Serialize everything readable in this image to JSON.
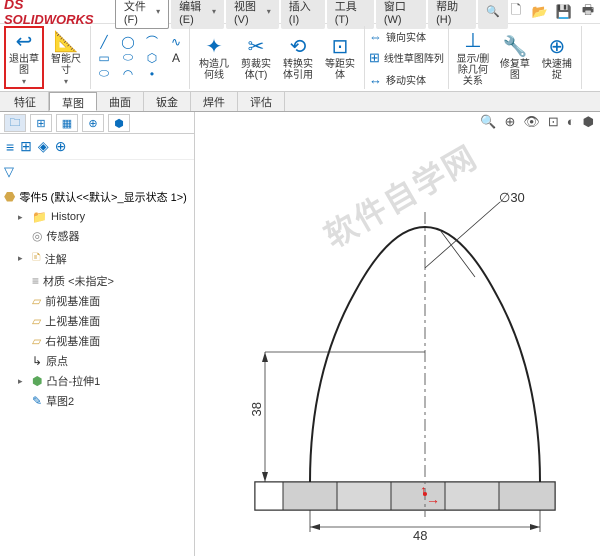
{
  "app": {
    "logo": "SOLIDWORKS",
    "logo_prefix": "DS"
  },
  "menu": [
    "文件(F)",
    "编辑(E)",
    "视图(V)",
    "插入(I)",
    "工具(T)",
    "窗口(W)",
    "帮助(H)"
  ],
  "ribbon": {
    "exit_sketch": "退出草图",
    "smart_dim": "智能尺寸",
    "convert": "构造几何线",
    "trim": "剪裁实体(T)",
    "convert_ent": "转换实体引用",
    "offset": "等距实体",
    "mirror": "镜向实体",
    "pattern": "线性草图阵列",
    "move": "移动实体",
    "display": "显示/删除几何关系",
    "repair": "修复草图",
    "quick": "快速捕捉"
  },
  "tabs": [
    "特征",
    "草图",
    "曲面",
    "钣金",
    "焊件",
    "评估"
  ],
  "tree": {
    "title": "零件5 (默认<<默认>_显示状态 1>)",
    "items": [
      {
        "icon": "folder",
        "label": "History",
        "expand": "▸"
      },
      {
        "icon": "sensor",
        "label": "传感器",
        "expand": ""
      },
      {
        "icon": "note",
        "label": "注解",
        "expand": "▸"
      },
      {
        "icon": "mat",
        "label": "材质 <未指定>",
        "expand": ""
      },
      {
        "icon": "plane",
        "label": "前视基准面",
        "expand": ""
      },
      {
        "icon": "plane",
        "label": "上视基准面",
        "expand": ""
      },
      {
        "icon": "plane",
        "label": "右视基准面",
        "expand": ""
      },
      {
        "icon": "origin",
        "label": "原点",
        "expand": ""
      },
      {
        "icon": "feat",
        "label": "凸台-拉伸1",
        "expand": "▸"
      },
      {
        "icon": "sketch",
        "label": "草图2",
        "expand": ""
      }
    ]
  },
  "drawing": {
    "dim_diameter": "∅30",
    "dim_height": "38",
    "dim_width": "48",
    "watermark": "软件自学网",
    "colors": {
      "outline": "#333333",
      "centerline": "#666666",
      "dim": "#333333"
    }
  }
}
